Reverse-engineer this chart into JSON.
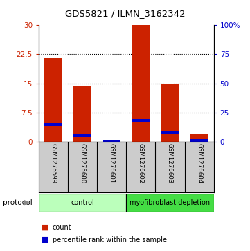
{
  "title": "GDS5821 / ILMN_3162342",
  "samples": [
    "GSM1276599",
    "GSM1276600",
    "GSM1276601",
    "GSM1276602",
    "GSM1276603",
    "GSM1276604"
  ],
  "counts": [
    21.5,
    14.2,
    0.15,
    30.0,
    14.8,
    1.9
  ],
  "percentile_ranks": [
    14.8,
    5.5,
    0.3,
    18.5,
    8.2,
    1.1
  ],
  "protocols": [
    {
      "label": "control",
      "start": 0,
      "end": 3,
      "color": "#bbffbb"
    },
    {
      "label": "myofibroblast depletion",
      "start": 3,
      "end": 6,
      "color": "#44dd44"
    }
  ],
  "ylim_left": [
    0,
    30
  ],
  "ylim_right": [
    0,
    100
  ],
  "yticks_left": [
    0,
    7.5,
    15,
    22.5,
    30
  ],
  "yticks_right": [
    0,
    25,
    50,
    75,
    100
  ],
  "ytick_labels_left": [
    "0",
    "7.5",
    "15",
    "22.5",
    "30"
  ],
  "ytick_labels_right": [
    "0",
    "25",
    "50",
    "75",
    "100%"
  ],
  "bar_color": "#cc2200",
  "percentile_color": "#0000cc",
  "bar_width": 0.6,
  "percentile_bar_height": 0.8,
  "percentile_bar_width": 0.6,
  "grid_color": "#000000",
  "background_color": "#ffffff",
  "plot_bg_color": "#ffffff",
  "sample_area_bg": "#cccccc",
  "left_label_color": "#cc2200",
  "right_label_color": "#0000cc"
}
